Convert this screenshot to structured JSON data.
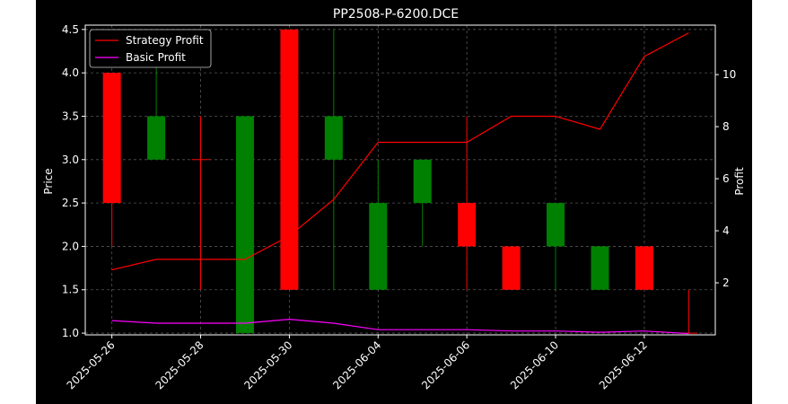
{
  "chart_data": {
    "type": "candlestick",
    "title": "PP2508-P-6200.DCE",
    "xlabel": "",
    "ylabel": "Price",
    "y2label": "Profit",
    "ylim": [
      0.98,
      4.55
    ],
    "y2lim": [
      0.0,
      11.9
    ],
    "y_ticks": [
      "1.0",
      "1.5",
      "2.0",
      "2.5",
      "3.0",
      "3.5",
      "4.0",
      "4.5"
    ],
    "y2_ticks": [
      "2",
      "4",
      "6",
      "8",
      "10"
    ],
    "x_tick_labels": [
      "2025-05-26",
      "2025-05-28",
      "2025-05-30",
      "2025-06-04",
      "2025-06-06",
      "2025-06-10",
      "2025-06-12"
    ],
    "x_tick_positions": [
      0,
      2,
      4,
      6,
      8,
      10,
      12
    ],
    "grid": true,
    "legend_position": "upper-left",
    "colors": {
      "up": "#008000",
      "down": "#ff0000",
      "strategy": "#ff0000",
      "basic": "#ff00ff",
      "background": "#000000",
      "axes": "#ffffff",
      "grid": "#555555"
    },
    "candles": [
      {
        "i": 0,
        "open": 2.5,
        "high": 4.0,
        "low": 2.0,
        "close": 4.0,
        "color": "red"
      },
      {
        "i": 1,
        "open": 3.0,
        "high": 4.2,
        "low": 3.0,
        "close": 3.5,
        "color": "green"
      },
      {
        "i": 2,
        "open": 3.0,
        "high": 3.5,
        "low": 1.5,
        "close": 3.0,
        "color": "red"
      },
      {
        "i": 3,
        "open": 1.0,
        "high": 3.5,
        "low": 1.0,
        "close": 3.5,
        "color": "green"
      },
      {
        "i": 4,
        "open": 1.5,
        "high": 4.5,
        "low": 1.5,
        "close": 4.5,
        "color": "red"
      },
      {
        "i": 5,
        "open": 3.0,
        "high": 4.5,
        "low": 1.5,
        "close": 3.5,
        "color": "green"
      },
      {
        "i": 6,
        "open": 1.5,
        "high": 3.0,
        "low": 1.5,
        "close": 2.5,
        "color": "green"
      },
      {
        "i": 7,
        "open": 2.5,
        "high": 3.0,
        "low": 2.0,
        "close": 3.0,
        "color": "green"
      },
      {
        "i": 8,
        "open": 2.0,
        "high": 3.5,
        "low": 1.5,
        "close": 2.5,
        "color": "red"
      },
      {
        "i": 9,
        "open": 1.5,
        "high": 2.0,
        "low": 1.5,
        "close": 2.0,
        "color": "red"
      },
      {
        "i": 10,
        "open": 2.0,
        "high": 2.5,
        "low": 1.5,
        "close": 2.5,
        "color": "green"
      },
      {
        "i": 11,
        "open": 1.5,
        "high": 2.0,
        "low": 1.5,
        "close": 2.0,
        "color": "green"
      },
      {
        "i": 12,
        "open": 1.5,
        "high": 2.0,
        "low": 1.5,
        "close": 2.0,
        "color": "red"
      },
      {
        "i": 13,
        "open": 1.0,
        "high": 1.5,
        "low": 1.0,
        "close": 1.0,
        "color": "red"
      }
    ],
    "series": [
      {
        "name": "Strategy Profit",
        "axis": "right",
        "x": [
          0,
          1,
          2,
          3,
          4,
          5,
          6,
          7,
          8,
          9,
          10,
          11,
          12,
          13
        ],
        "values": [
          2.5,
          2.9,
          2.9,
          2.9,
          3.8,
          5.2,
          7.4,
          7.4,
          7.4,
          8.4,
          8.4,
          7.9,
          10.7,
          11.6
        ]
      },
      {
        "name": "Basic Profit",
        "axis": "right",
        "x": [
          0,
          1,
          2,
          3,
          4,
          5,
          6,
          7,
          8,
          9,
          10,
          11,
          12,
          13
        ],
        "values": [
          0.55,
          0.45,
          0.45,
          0.45,
          0.6,
          0.45,
          0.2,
          0.2,
          0.2,
          0.15,
          0.15,
          0.1,
          0.15,
          0.05
        ]
      }
    ]
  }
}
